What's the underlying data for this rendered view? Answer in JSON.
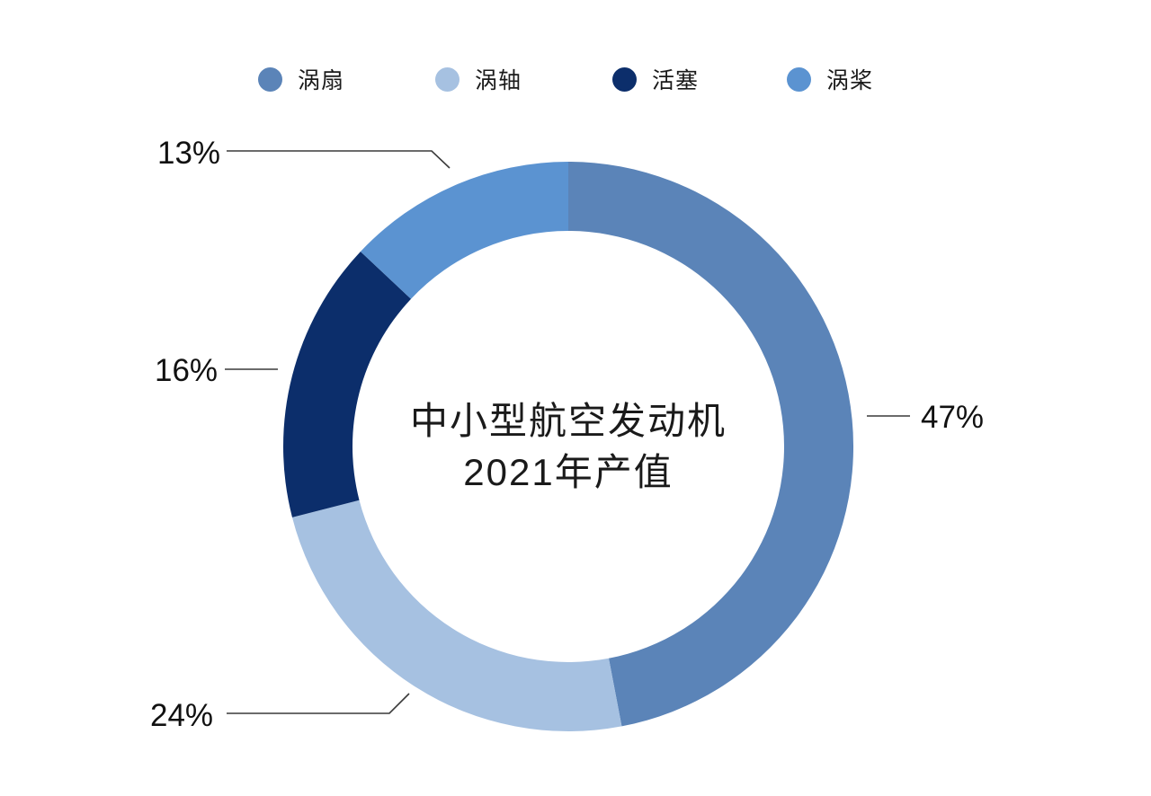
{
  "center_label": {
    "line1": "中小型航空发动机",
    "line2": "2021年产值"
  },
  "chart_data": {
    "type": "pie",
    "donut": true,
    "title": "中小型航空发动机 2021年产值",
    "categories": [
      "涡扇",
      "涡轴",
      "活塞",
      "涡桨"
    ],
    "slugs": [
      "turbofan",
      "turboshaft",
      "piston",
      "turboprop"
    ],
    "values": [
      47,
      24,
      16,
      13
    ],
    "unit": "%",
    "labels": [
      "47%",
      "24%",
      "16%",
      "13%"
    ],
    "colors": [
      "#5b84b8",
      "#a6c1e1",
      "#0c2e6b",
      "#5b93d1"
    ],
    "legend_position": "top",
    "start_angle_deg": 0,
    "direction": "clockwise",
    "background": "#ffffff",
    "leader_line_color": "#3a3a3a"
  }
}
